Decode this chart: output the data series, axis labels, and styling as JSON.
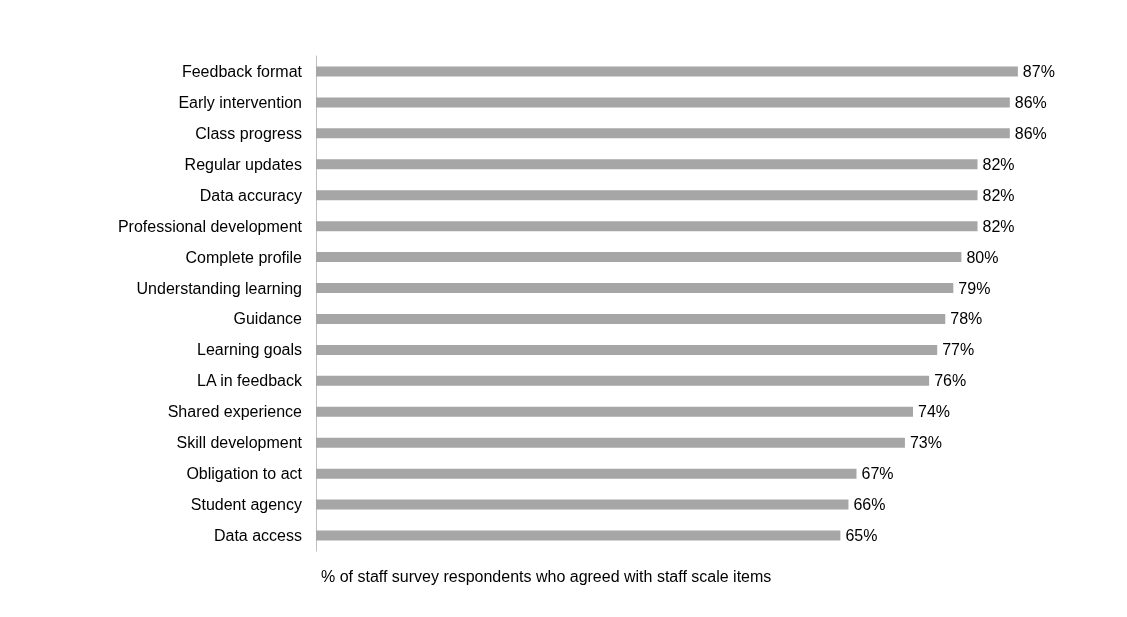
{
  "chart_data": {
    "type": "bar",
    "orientation": "horizontal",
    "xlabel": "% of staff survey respondents who agreed with staff scale items",
    "categories": [
      "Feedback format",
      "Early intervention",
      "Class progress",
      "Regular updates",
      "Data accuracy",
      "Professional development",
      "Complete profile",
      "Understanding learning",
      "Guidance",
      "Learning goals",
      "LA in feedback",
      "Shared experience",
      "Skill development",
      "Obligation to act",
      "Student agency",
      "Data access"
    ],
    "values": [
      87,
      86,
      86,
      82,
      82,
      82,
      80,
      79,
      78,
      77,
      76,
      74,
      73,
      67,
      66,
      65
    ],
    "value_labels": [
      "87%",
      "86%",
      "86%",
      "82%",
      "82%",
      "82%",
      "80%",
      "79%",
      "78%",
      "77%",
      "76%",
      "74%",
      "73%",
      "67%",
      "66%",
      "65%"
    ],
    "color": "#a6a6a6",
    "tick_labels": "y"
  }
}
